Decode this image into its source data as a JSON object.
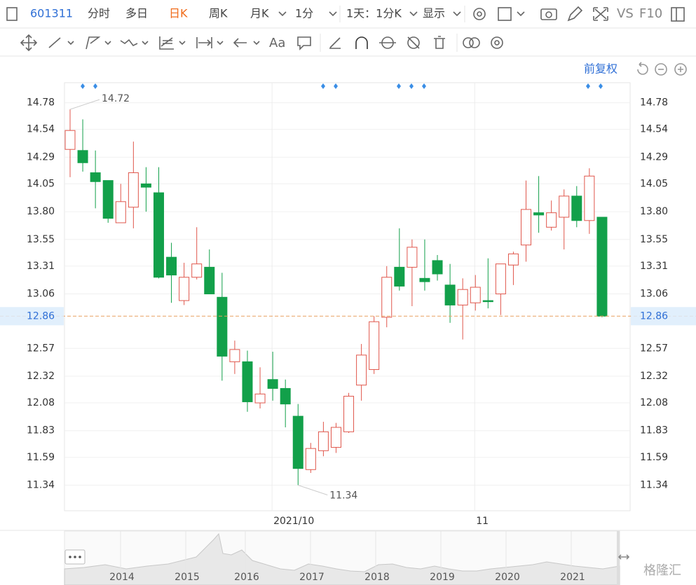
{
  "toolbar": {
    "code": "601311",
    "tabs": [
      "分时",
      "多日",
      "日K",
      "周K",
      "月K",
      "1分"
    ],
    "period": "1天：1分K",
    "display": "显示",
    "vs": "VS",
    "f10": "F10"
  },
  "drawing_tools": {
    "font": "Aa"
  },
  "adjust": "前复权",
  "chart_data": {
    "type": "candlestick",
    "categories": [
      null,
      null,
      null,
      null,
      null,
      null,
      null,
      null,
      null,
      null,
      null,
      null,
      null,
      null,
      null,
      null,
      "2021/10",
      null,
      null,
      null,
      null,
      null,
      null,
      null,
      null,
      null,
      null,
      null,
      null,
      null,
      null,
      null,
      "11",
      null,
      null,
      null,
      null,
      null,
      null,
      null,
      null,
      null,
      null
    ],
    "open": [
      14.36,
      14.35,
      14.15,
      14.08,
      13.7,
      13.84,
      14.05,
      13.97,
      13.39,
      13.0,
      13.21,
      13.3,
      13.03,
      12.45,
      12.45,
      12.08,
      12.29,
      12.21,
      11.96,
      11.48,
      11.65,
      11.68,
      11.82,
      12.24,
      12.38,
      12.85,
      13.3,
      13.3,
      13.2,
      13.36,
      13.14,
      12.96,
      12.98,
      13.0,
      13.06,
      13.32,
      13.5,
      13.79,
      13.66,
      13.75,
      13.94,
      13.72,
      13.75
    ],
    "high": [
      14.72,
      14.63,
      14.35,
      14.08,
      14.05,
      14.43,
      14.2,
      14.2,
      13.52,
      13.34,
      13.66,
      13.46,
      13.25,
      12.64,
      12.55,
      12.4,
      12.54,
      12.29,
      12.07,
      11.72,
      11.91,
      11.9,
      12.17,
      12.61,
      12.86,
      13.31,
      13.65,
      13.55,
      13.55,
      13.41,
      13.33,
      13.2,
      13.23,
      13.38,
      13.33,
      13.44,
      14.08,
      14.12,
      13.9,
      14.0,
      14.03,
      14.19,
      13.75
    ],
    "low": [
      14.11,
      14.16,
      13.83,
      13.7,
      13.7,
      13.65,
      13.8,
      13.2,
      12.98,
      12.96,
      13.19,
      13.06,
      12.28,
      12.34,
      12.0,
      12.03,
      12.1,
      11.86,
      11.34,
      11.45,
      11.6,
      11.63,
      11.81,
      12.1,
      12.34,
      12.76,
      13.09,
      12.95,
      13.09,
      13.18,
      12.8,
      12.65,
      12.91,
      12.93,
      12.87,
      13.14,
      13.35,
      13.61,
      13.63,
      13.46,
      13.66,
      13.6,
      12.85
    ],
    "close": [
      14.53,
      14.24,
      14.07,
      13.74,
      13.89,
      14.15,
      14.02,
      13.21,
      13.23,
      13.21,
      13.33,
      13.06,
      12.5,
      12.56,
      12.09,
      12.16,
      12.21,
      12.07,
      11.49,
      11.67,
      11.82,
      11.86,
      12.14,
      12.51,
      12.81,
      13.21,
      13.13,
      13.48,
      13.17,
      13.24,
      12.96,
      13.1,
      13.12,
      12.99,
      13.33,
      13.42,
      13.82,
      13.77,
      13.79,
      13.94,
      13.72,
      14.12,
      12.86
    ],
    "up_color": "#e0574c",
    "down_color": "#12a04a",
    "ylim": [
      11.11,
      14.96
    ],
    "yticks": [
      14.78,
      14.54,
      14.29,
      14.05,
      {
        "value": 13.8,
        "label": "13.80"
      },
      13.55,
      13.31,
      13.06,
      12.57,
      12.32,
      12.08,
      11.83,
      11.59,
      11.34
    ],
    "grid": true
  },
  "navigator": {
    "labels": [
      "2014",
      "2015",
      "2016",
      "2017",
      "2018",
      "2019",
      "2020",
      "2021"
    ]
  },
  "watermark": "格隆汇"
}
